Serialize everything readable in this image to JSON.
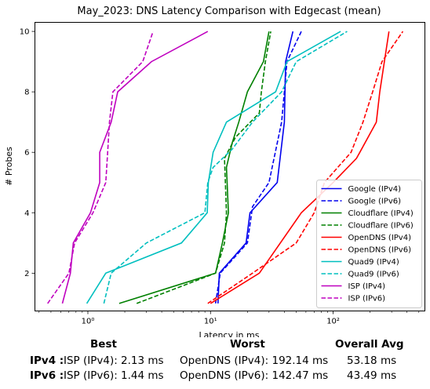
{
  "chart_data": {
    "type": "line",
    "title": "May_2023: DNS Latency Comparison with Edgecast (mean)",
    "xlabel": "Latency in ms",
    "ylabel": "# Probes",
    "xscale": "log",
    "xlim": [
      0.37,
      560
    ],
    "ylim": [
      0.75,
      10.3
    ],
    "x_major_ticks": [
      1,
      10,
      100
    ],
    "x_major_tick_labels": [
      "10⁰",
      "10¹",
      "10²"
    ],
    "y_ticks": [
      2,
      4,
      6,
      8,
      10
    ],
    "y_tick_labels": [
      "2",
      "4",
      "6",
      "8",
      "10"
    ],
    "grid": false,
    "legend_position": "lower-right",
    "series": [
      {
        "name": "Google (IPv4)",
        "color": "#0000ee",
        "dash": "solid",
        "points": [
          [
            11.5,
            1
          ],
          [
            11.8,
            2
          ],
          [
            19.5,
            3
          ],
          [
            21,
            4
          ],
          [
            35,
            5
          ],
          [
            40,
            7
          ],
          [
            41,
            9
          ],
          [
            47,
            10
          ]
        ]
      },
      {
        "name": "Google (IPv6)",
        "color": "#0000ee",
        "dash": "dashed",
        "points": [
          [
            11,
            1
          ],
          [
            12,
            2
          ],
          [
            20,
            3
          ],
          [
            22,
            4.2
          ],
          [
            30,
            5
          ],
          [
            38,
            7
          ],
          [
            40,
            8
          ],
          [
            42,
            9
          ],
          [
            55,
            10
          ]
        ]
      },
      {
        "name": "Cloudflare (IPv4)",
        "color": "#008000",
        "dash": "solid",
        "points": [
          [
            1.8,
            1
          ],
          [
            11,
            2
          ],
          [
            12.5,
            3
          ],
          [
            14,
            4
          ],
          [
            13.5,
            5.5
          ],
          [
            15,
            6.3
          ],
          [
            17,
            7
          ],
          [
            20,
            8
          ],
          [
            27,
            9
          ],
          [
            30,
            10
          ]
        ]
      },
      {
        "name": "Cloudflare (IPv6)",
        "color": "#008000",
        "dash": "dashed",
        "points": [
          [
            2.5,
            1
          ],
          [
            11,
            2
          ],
          [
            13,
            3
          ],
          [
            13.5,
            4
          ],
          [
            13,
            5.8
          ],
          [
            16,
            6.5
          ],
          [
            25,
            7.3
          ],
          [
            26,
            8
          ],
          [
            28,
            9
          ],
          [
            31,
            10
          ]
        ]
      },
      {
        "name": "OpenDNS (IPv4)",
        "color": "#ff0000",
        "dash": "solid",
        "points": [
          [
            10,
            1
          ],
          [
            25,
            2
          ],
          [
            55,
            4
          ],
          [
            100,
            5
          ],
          [
            155,
            5.8
          ],
          [
            165,
            6
          ],
          [
            225,
            7
          ],
          [
            240,
            8
          ],
          [
            285,
            10
          ]
        ]
      },
      {
        "name": "OpenDNS (IPv6)",
        "color": "#ff0000",
        "dash": "dashed",
        "points": [
          [
            9.5,
            1
          ],
          [
            22,
            2
          ],
          [
            50,
            3
          ],
          [
            70,
            4
          ],
          [
            85,
            5
          ],
          [
            140,
            6
          ],
          [
            175,
            7
          ],
          [
            210,
            8
          ],
          [
            250,
            9
          ],
          [
            370,
            10
          ]
        ]
      },
      {
        "name": "Quad9 (IPv4)",
        "color": "#00bfbf",
        "dash": "solid",
        "points": [
          [
            0.98,
            1
          ],
          [
            1.4,
            2
          ],
          [
            5.8,
            3
          ],
          [
            9.4,
            4
          ],
          [
            9.6,
            5
          ],
          [
            10.5,
            6
          ],
          [
            13.5,
            7
          ],
          [
            34,
            8
          ],
          [
            42,
            9
          ],
          [
            115,
            10
          ]
        ]
      },
      {
        "name": "Quad9 (IPv6)",
        "color": "#00bfbf",
        "dash": "dashed",
        "points": [
          [
            1.35,
            1
          ],
          [
            1.55,
            2
          ],
          [
            3,
            3
          ],
          [
            9,
            4
          ],
          [
            9.5,
            5
          ],
          [
            10.5,
            5.5
          ],
          [
            15,
            6.1
          ],
          [
            22,
            7
          ],
          [
            38,
            8
          ],
          [
            50,
            9
          ],
          [
            130,
            10
          ]
        ]
      },
      {
        "name": "ISP (IPv4)",
        "color": "#bf00bf",
        "dash": "solid",
        "points": [
          [
            0.62,
            1
          ],
          [
            0.72,
            2
          ],
          [
            0.76,
            3
          ],
          [
            1.05,
            4
          ],
          [
            1.25,
            5
          ],
          [
            1.25,
            6
          ],
          [
            1.55,
            7
          ],
          [
            1.75,
            8
          ],
          [
            3.3,
            9
          ],
          [
            9.5,
            10
          ]
        ]
      },
      {
        "name": "ISP (IPv6)",
        "color": "#bf00bf",
        "dash": "dashed",
        "points": [
          [
            0.47,
            1
          ],
          [
            0.7,
            2
          ],
          [
            0.78,
            3
          ],
          [
            1.1,
            4
          ],
          [
            1.4,
            5
          ],
          [
            1.45,
            6
          ],
          [
            1.5,
            7
          ],
          [
            1.6,
            8
          ],
          [
            2.8,
            9
          ],
          [
            3.4,
            10
          ]
        ]
      }
    ]
  },
  "stats": {
    "headers": {
      "best": "Best",
      "worst": "Worst",
      "avg": "Overall Avg"
    },
    "rows": [
      {
        "label": "IPv4 :",
        "best": "ISP (IPv4): 2.13 ms",
        "worst": "OpenDNS (IPv4): 192.14 ms",
        "avg": "53.18 ms"
      },
      {
        "label": "IPv6 :",
        "best": "ISP (IPv6): 1.44 ms",
        "worst": "OpenDNS (IPv6): 142.47 ms",
        "avg": "43.49 ms"
      }
    ]
  }
}
